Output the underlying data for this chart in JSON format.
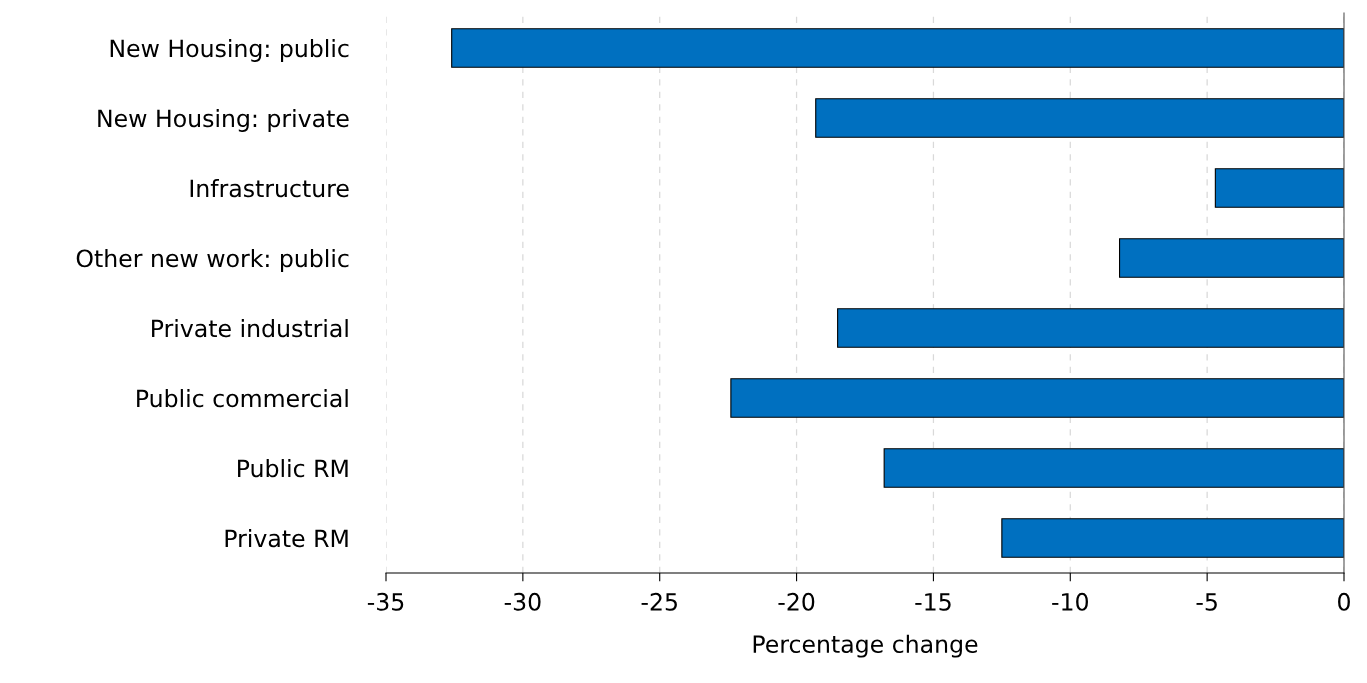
{
  "chart_data": {
    "type": "bar",
    "orientation": "horizontal",
    "xlabel": "Percentage change",
    "categories": [
      "New Housing: public",
      "New Housing: private",
      "Infrastructure",
      "Other new work: public",
      "Private industrial",
      "Public commercial",
      "Public RM",
      "Private RM"
    ],
    "values": [
      -32.6,
      -19.3,
      -4.7,
      -8.2,
      -18.5,
      -22.4,
      -16.8,
      -12.5
    ],
    "color": "#0070c0",
    "xlim": [
      -35,
      0
    ],
    "xticks": [
      -35,
      -30,
      -25,
      -20,
      -15,
      -10,
      -5,
      0
    ],
    "grid": "x",
    "legend": false
  }
}
